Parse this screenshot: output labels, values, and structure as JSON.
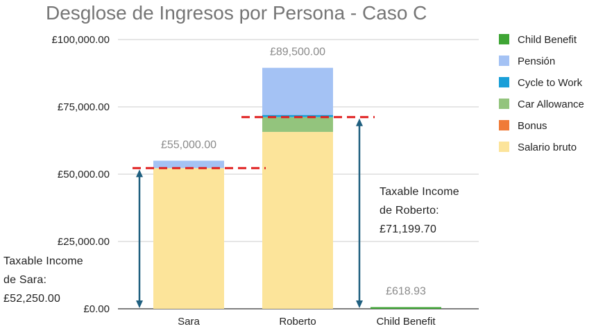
{
  "chart_data": {
    "type": "bar",
    "stacked": true,
    "title": "Desglose de Ingresos por Persona - Caso C",
    "xlabel": "",
    "ylabel": "",
    "ylim": [
      0,
      100000
    ],
    "yticks": [
      "£0.00",
      "£25,000.00",
      "£50,000.00",
      "£75,000.00",
      "£100,000.00"
    ],
    "ytick_values": [
      0,
      25000,
      50000,
      75000,
      100000
    ],
    "grid": true,
    "legend_position": "right",
    "categories": [
      "Sara",
      "Roberto",
      "Child Benefit"
    ],
    "series": [
      {
        "name": "Salario bruto",
        "color": "#FCE49A",
        "values": [
          52250,
          65700,
          0
        ]
      },
      {
        "name": "Bonus",
        "color": "#F07B38",
        "values": [
          0,
          0,
          0
        ]
      },
      {
        "name": "Car Allowance",
        "color": "#93C47D",
        "values": [
          0,
          5500,
          0
        ]
      },
      {
        "name": "Cycle to Work",
        "color": "#1A9FD8",
        "values": [
          0,
          800,
          0
        ]
      },
      {
        "name": "Pensión",
        "color": "#A4C2F4",
        "values": [
          2750,
          17500,
          0
        ]
      },
      {
        "name": "Child Benefit",
        "color": "#3FA535",
        "values": [
          0,
          0,
          618.93
        ]
      }
    ],
    "totals": [
      "£55,000.00",
      "£89,500.00",
      "£618.93"
    ],
    "threshold_lines": [
      {
        "category": "Sara",
        "value": 52250,
        "color": "#E02020"
      },
      {
        "category": "Roberto",
        "value": 71199.7,
        "color": "#E02020"
      }
    ],
    "annotations": [
      {
        "category": "Sara",
        "value": 52250,
        "lines": [
          "Taxable Income",
          "de Sara:",
          "£52,250.00"
        ]
      },
      {
        "category": "Roberto",
        "value": 71199.7,
        "lines": [
          "Taxable Income",
          "de Roberto:",
          "£71,199.70"
        ]
      }
    ],
    "arrow_color": "#1F5F7F"
  }
}
